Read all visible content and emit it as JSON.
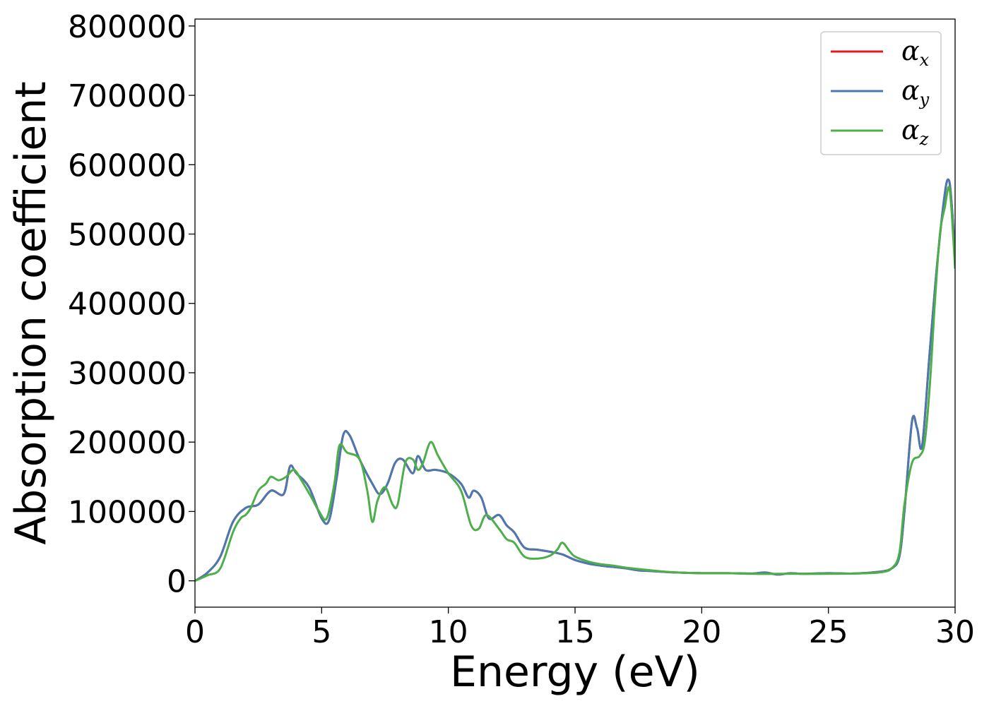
{
  "chart_data": {
    "type": "line",
    "title": "",
    "xlabel": "Energy (eV)",
    "ylabel": "Absorption coefficient",
    "xlim": [
      0,
      30
    ],
    "ylim": [
      -38000,
      810000
    ],
    "xticks": [
      0,
      5,
      10,
      15,
      20,
      25,
      30
    ],
    "yticks": [
      0,
      100000,
      200000,
      300000,
      400000,
      500000,
      600000,
      700000,
      800000
    ],
    "grid": false,
    "legend_position": "top-right",
    "series": [
      {
        "name": "α_x",
        "legend_symbol": "α",
        "legend_subscript": "x",
        "color": "#e41a1c",
        "x": [
          0,
          0.5,
          1,
          1.5,
          2,
          2.5,
          3,
          3.5,
          3.75,
          4,
          4.5,
          5,
          5.3,
          5.6,
          5.85,
          6.1,
          6.5,
          7,
          7.3,
          7.6,
          7.9,
          8.2,
          8.6,
          8.8,
          9.1,
          9.5,
          10,
          10.5,
          10.8,
          11,
          11.3,
          11.6,
          12,
          12.3,
          12.6,
          13,
          13.5,
          14,
          14.5,
          15,
          15.5,
          16,
          16.5,
          17,
          17.5,
          18,
          19,
          20,
          21,
          22,
          22.5,
          23,
          23.5,
          24,
          25,
          26,
          27,
          27.5,
          27.8,
          28,
          28.3,
          28.5,
          28.7,
          29,
          29.3,
          29.6,
          29.75,
          29.85,
          30
        ],
        "values": [
          0,
          12000,
          35000,
          85000,
          105000,
          110000,
          130000,
          125000,
          165000,
          155000,
          135000,
          90000,
          88000,
          150000,
          210000,
          210000,
          175000,
          140000,
          125000,
          140000,
          170000,
          175000,
          155000,
          180000,
          160000,
          160000,
          155000,
          140000,
          120000,
          130000,
          120000,
          90000,
          95000,
          80000,
          70000,
          48000,
          45000,
          42000,
          38000,
          30000,
          25000,
          22000,
          20000,
          18000,
          15000,
          14000,
          12000,
          11000,
          11000,
          10500,
          12000,
          9000,
          11000,
          10000,
          11000,
          10500,
          13000,
          18000,
          35000,
          100000,
          230000,
          220000,
          195000,
          330000,
          460000,
          560000,
          578000,
          550000,
          470000
        ]
      },
      {
        "name": "α_y",
        "legend_symbol": "α",
        "legend_subscript": "y",
        "color": "#4a78b0",
        "x": [
          0,
          0.5,
          1,
          1.5,
          2,
          2.5,
          3,
          3.5,
          3.75,
          4,
          4.5,
          5,
          5.3,
          5.6,
          5.85,
          6.1,
          6.5,
          7,
          7.3,
          7.6,
          7.9,
          8.2,
          8.6,
          8.8,
          9.1,
          9.5,
          10,
          10.5,
          10.8,
          11,
          11.3,
          11.6,
          12,
          12.3,
          12.6,
          13,
          13.5,
          14,
          14.5,
          15,
          15.5,
          16,
          16.5,
          17,
          17.5,
          18,
          19,
          20,
          21,
          22,
          22.5,
          23,
          23.5,
          24,
          25,
          26,
          27,
          27.5,
          27.8,
          28,
          28.3,
          28.5,
          28.7,
          29,
          29.3,
          29.6,
          29.75,
          29.85,
          30
        ],
        "values": [
          0,
          12000,
          35000,
          85000,
          105000,
          110000,
          130000,
          125000,
          165000,
          155000,
          135000,
          90000,
          88000,
          150000,
          210000,
          210000,
          175000,
          140000,
          125000,
          140000,
          170000,
          175000,
          155000,
          180000,
          160000,
          160000,
          155000,
          140000,
          120000,
          130000,
          120000,
          90000,
          95000,
          80000,
          70000,
          48000,
          45000,
          42000,
          38000,
          30000,
          25000,
          22000,
          20000,
          18000,
          15000,
          14000,
          12000,
          11000,
          11000,
          10500,
          12000,
          9000,
          11000,
          10000,
          11000,
          10500,
          13000,
          18000,
          35000,
          100000,
          230000,
          220000,
          195000,
          330000,
          460000,
          560000,
          578000,
          550000,
          470000
        ]
      },
      {
        "name": "α_z",
        "legend_symbol": "α",
        "legend_subscript": "z",
        "color": "#4daf4a",
        "x": [
          0,
          0.5,
          1,
          1.5,
          1.8,
          2,
          2.2,
          2.5,
          2.8,
          3,
          3.3,
          3.6,
          3.9,
          4.2,
          4.6,
          4.9,
          5.2,
          5.5,
          5.7,
          6,
          6.5,
          6.8,
          7,
          7.2,
          7.5,
          7.8,
          8,
          8.3,
          8.6,
          8.8,
          9,
          9.3,
          9.6,
          10,
          10.5,
          10.9,
          11.2,
          11.5,
          12,
          12.3,
          12.6,
          13,
          13.5,
          14,
          14.3,
          14.5,
          14.8,
          15,
          15.5,
          16,
          16.5,
          17,
          17.5,
          18,
          19,
          20,
          21,
          22,
          23,
          24,
          25,
          26,
          27,
          27.5,
          27.8,
          28,
          28.3,
          28.6,
          28.8,
          29,
          29.2,
          29.4,
          29.6,
          29.75,
          29.85,
          30
        ],
        "values": [
          0,
          8000,
          18000,
          70000,
          90000,
          95000,
          105000,
          130000,
          140000,
          150000,
          145000,
          150000,
          160000,
          145000,
          120000,
          100000,
          90000,
          140000,
          195000,
          185000,
          175000,
          130000,
          85000,
          115000,
          135000,
          110000,
          110000,
          170000,
          175000,
          160000,
          170000,
          200000,
          180000,
          155000,
          130000,
          80000,
          75000,
          95000,
          75000,
          60000,
          55000,
          35000,
          32000,
          36000,
          45000,
          55000,
          42000,
          35000,
          28000,
          24000,
          22000,
          19000,
          17000,
          15000,
          12000,
          11000,
          11000,
          10000,
          10000,
          10000,
          10000,
          10500,
          12000,
          18000,
          40000,
          110000,
          170000,
          180000,
          200000,
          280000,
          400000,
          500000,
          540000,
          568000,
          540000,
          450000
        ]
      }
    ]
  }
}
